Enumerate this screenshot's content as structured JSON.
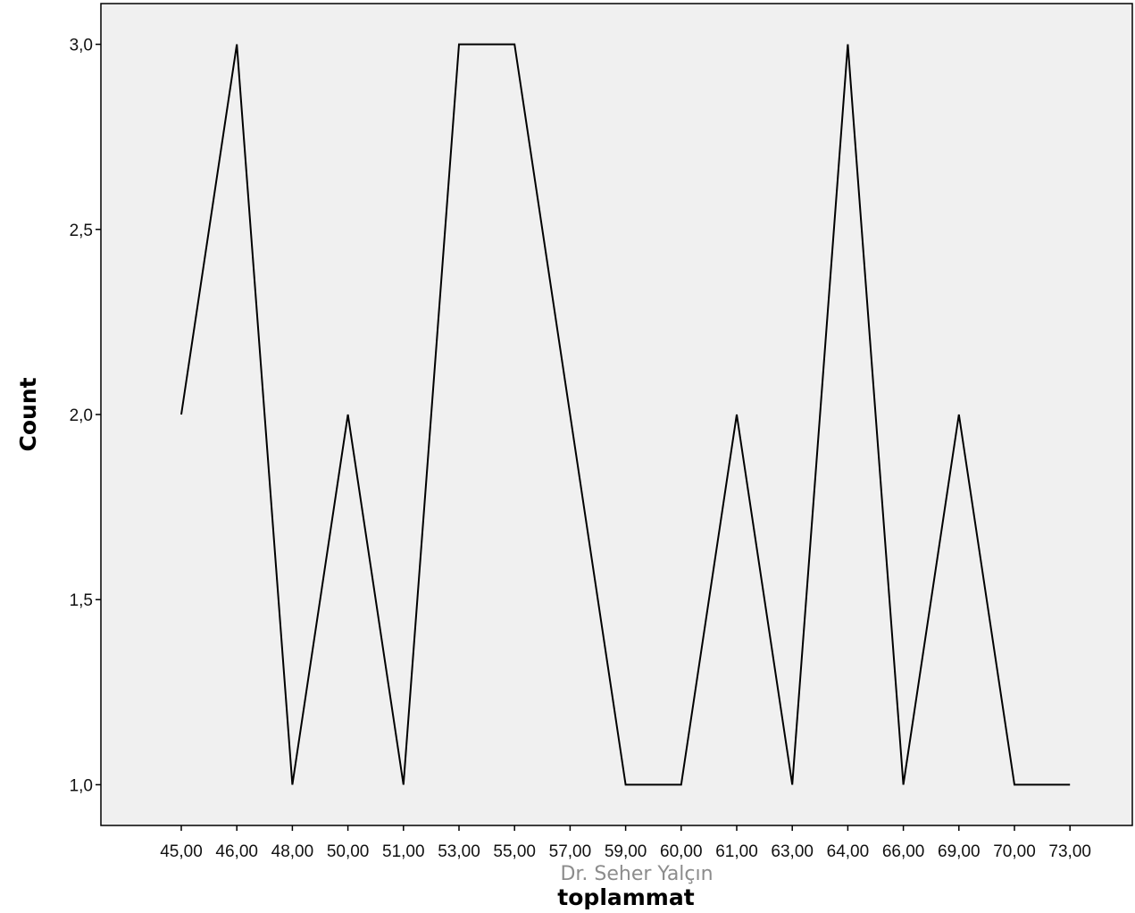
{
  "chart_data": {
    "type": "line",
    "xlabel": "toplammat",
    "ylabel": "Count",
    "categories": [
      "45,00",
      "46,00",
      "48,00",
      "50,00",
      "51,00",
      "53,00",
      "55,00",
      "57,00",
      "59,00",
      "60,00",
      "61,00",
      "63,00",
      "64,00",
      "66,00",
      "69,00",
      "70,00",
      "73,00"
    ],
    "values": [
      2,
      3,
      1,
      2,
      1,
      3,
      3,
      2,
      1,
      1,
      2,
      1,
      3,
      1,
      2,
      1,
      1
    ],
    "yticks": [
      1.0,
      1.5,
      2.0,
      2.5,
      3.0
    ],
    "ytick_labels": [
      "1,0",
      "1,5",
      "2,0",
      "2,5",
      "3,0"
    ],
    "ylim": [
      0.89,
      3.11
    ],
    "grid": false,
    "colors": {
      "plot_background": "#f0f0f0",
      "line": "#000000",
      "frame": "#000000"
    }
  },
  "watermark": "Dr. Seher Yalçın"
}
